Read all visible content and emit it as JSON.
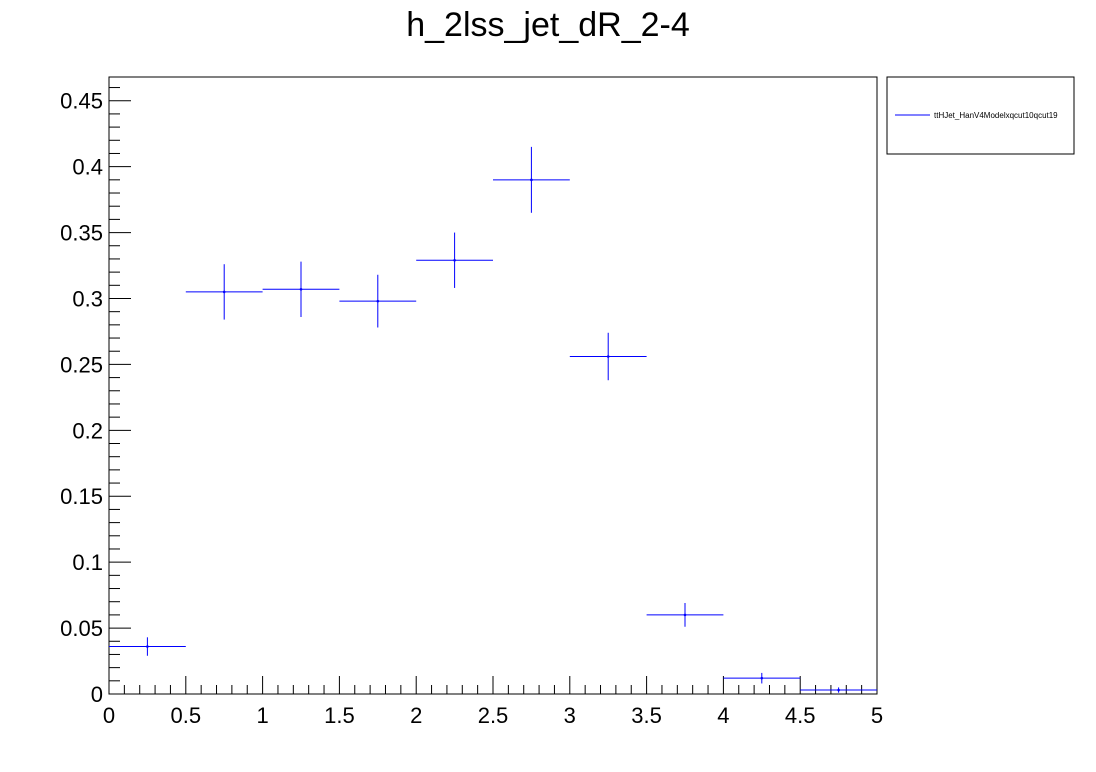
{
  "chart_data": {
    "type": "scatter",
    "title": "h_2lss_jet_dR_2-4",
    "xlabel": "",
    "ylabel": "",
    "xlim": [
      0,
      5
    ],
    "ylim": [
      0,
      0.468
    ],
    "grid": false,
    "legend_position": "top-right, outside plot",
    "x_ticks": [
      "0",
      "0.5",
      "1",
      "1.5",
      "2",
      "2.5",
      "3",
      "3.5",
      "4",
      "4.5",
      "5"
    ],
    "y_ticks": [
      "0",
      "0.05",
      "0.1",
      "0.15",
      "0.2",
      "0.25",
      "0.3",
      "0.35",
      "0.4",
      "0.45"
    ],
    "series": [
      {
        "name": "ttHJet_HanV4Modelxqcut10qcut19",
        "color": "#0000ff",
        "bin_width": 0.5,
        "x": [
          0.25,
          0.75,
          1.25,
          1.75,
          2.25,
          2.75,
          3.25,
          3.75,
          4.25,
          4.75
        ],
        "y": [
          0.036,
          0.305,
          0.307,
          0.298,
          0.329,
          0.39,
          0.256,
          0.06,
          0.012,
          0.003
        ],
        "yerr": [
          0.007,
          0.021,
          0.021,
          0.02,
          0.021,
          0.025,
          0.018,
          0.009,
          0.004,
          0.002
        ]
      }
    ]
  }
}
